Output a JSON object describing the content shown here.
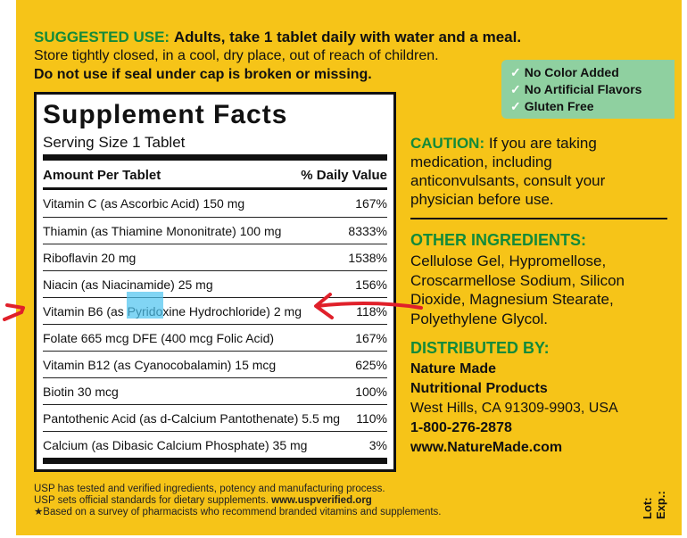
{
  "suggested_use": {
    "label": "SUGGESTED USE:",
    "text": "Adults, take 1 tablet daily with water and a meal."
  },
  "storage": "Store tightly closed, in a cool, dry place, out of reach of children.",
  "warning": "Do not use if seal under cap is broken or missing.",
  "badges": [
    "No Color Added",
    "No Artificial Flavors",
    "Gluten Free"
  ],
  "supplement_facts": {
    "title": "Supplement Facts",
    "serving_size": "Serving Size 1 Tablet",
    "header": [
      "Amount Per Tablet",
      "% Daily Value"
    ],
    "rows": [
      [
        "Vitamin C (as Ascorbic Acid) 150 mg",
        "167%"
      ],
      [
        "Thiamin (as Thiamine Mononitrate) 100 mg",
        "8333%"
      ],
      [
        "Riboflavin 20 mg",
        "1538%"
      ],
      [
        "Niacin (as Niacinamide) 25 mg",
        "156%"
      ],
      [
        "Vitamin B6 (as Pyridoxine Hydrochloride) 2 mg",
        "118%"
      ],
      [
        "Folate 665 mcg DFE (400 mcg Folic Acid)",
        "167%"
      ],
      [
        "Vitamin B12 (as Cyanocobalamin) 15 mcg",
        "625%"
      ],
      [
        "Biotin 30 mcg",
        "100%"
      ],
      [
        "Pantothenic Acid (as d-Calcium Pantothenate) 5.5 mg",
        "110%"
      ],
      [
        "Calcium (as Dibasic Calcium Phosphate) 35 mg",
        "3%"
      ]
    ]
  },
  "caution": {
    "label": "CAUTION:",
    "text": "If you are taking medication, including anticonvulsants, consult your physician before use."
  },
  "other_ingredients": {
    "heading": "OTHER INGREDIENTS:",
    "text": "Cellulose Gel, Hypromellose, Croscarmellose Sodium, Silicon Dioxide, Magnesium Stearate, Polyethylene Glycol."
  },
  "distributed_by": {
    "heading": "DISTRIBUTED BY:",
    "lines": [
      "Nature Made",
      "Nutritional Products",
      "West Hills, CA 91309-9903, USA",
      "1-800-276-2878",
      "www.NatureMade.com"
    ]
  },
  "footer": {
    "line1": "USP has tested and verified ingredients, potency and manufacturing process.",
    "line2": "USP sets official standards for dietary supplements.",
    "line2_url": "www.uspverified.org",
    "line3": "★Based on a survey of pharmacists who recommend branded vitamins and supplements."
  },
  "lot_exp": [
    "Lot:",
    "Exp.:"
  ]
}
